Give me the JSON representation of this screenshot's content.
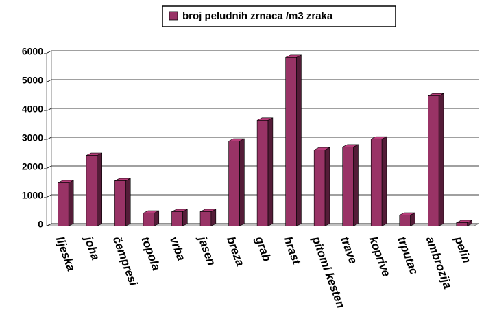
{
  "chart_data": {
    "type": "bar",
    "categories": [
      "lijeska",
      "joha",
      "čempresi",
      "topola",
      "vrba",
      "jasen",
      "breza",
      "grab",
      "hrast",
      "pitomi kesten",
      "trave",
      "koprive",
      "trputac",
      "ambrozija",
      "pelin"
    ],
    "series": [
      {
        "name": "broj peludnih zrnaca /m3 zraka",
        "color": "#993366",
        "values": [
          1500,
          2450,
          1570,
          450,
          500,
          500,
          2950,
          3670,
          5860,
          2640,
          2740,
          3020,
          380,
          4520,
          120
        ]
      }
    ],
    "ylim": [
      0,
      6000
    ],
    "yticks": [
      0,
      1000,
      2000,
      3000,
      4000,
      5000,
      6000
    ],
    "grid": true,
    "legend": "top"
  }
}
